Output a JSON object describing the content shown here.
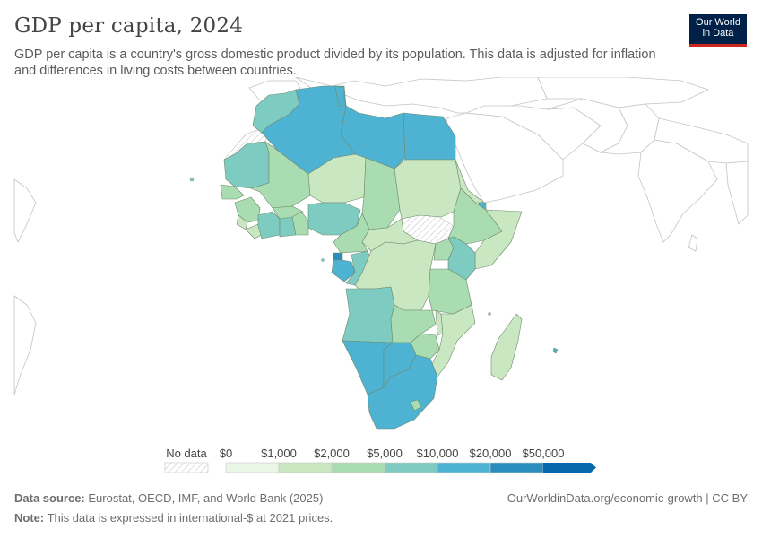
{
  "header": {
    "title": "GDP per capita, 2024",
    "subtitle": "GDP per capita is a country's gross domestic product divided by its population. This data is adjusted for inflation and differences in living costs between countries."
  },
  "logo": {
    "line1": "Our World",
    "line2": "in Data",
    "bg": "#002147",
    "accent": "#ce261e"
  },
  "legend": {
    "no_data_label": "No data",
    "bins": [
      {
        "label": "$0",
        "color": "#eaf6e6"
      },
      {
        "label": "$1,000",
        "color": "#c9e8c1"
      },
      {
        "label": "$2,000",
        "color": "#a9dcb0"
      },
      {
        "label": "$5,000",
        "color": "#7ecbc2"
      },
      {
        "label": "$10,000",
        "color": "#4eb3d3"
      },
      {
        "label": "$20,000",
        "color": "#2b8cbe"
      },
      {
        "label": "$50,000",
        "color": "#0868ac"
      }
    ]
  },
  "footer": {
    "source_label": "Data source:",
    "source_text": "Eurostat, OECD, IMF, and World Bank (2025)",
    "note_label": "Note:",
    "note_text": "This data is expressed in international-$ at 2021 prices.",
    "url": "OurWorldinData.org/economic-growth | CC BY"
  },
  "map_data": {
    "region": "Africa",
    "countries": [
      {
        "name": "Morocco",
        "bin": 3
      },
      {
        "name": "Western Sahara",
        "bin": -1
      },
      {
        "name": "Algeria",
        "bin": 4
      },
      {
        "name": "Tunisia",
        "bin": 4
      },
      {
        "name": "Libya",
        "bin": 4
      },
      {
        "name": "Egypt",
        "bin": 4
      },
      {
        "name": "Mauritania",
        "bin": 3
      },
      {
        "name": "Mali",
        "bin": 2
      },
      {
        "name": "Niger",
        "bin": 1
      },
      {
        "name": "Chad",
        "bin": 2
      },
      {
        "name": "Sudan",
        "bin": 1
      },
      {
        "name": "South Sudan",
        "bin": -1
      },
      {
        "name": "Eritrea",
        "bin": 1
      },
      {
        "name": "Djibouti",
        "bin": 4
      },
      {
        "name": "Ethiopia",
        "bin": 2
      },
      {
        "name": "Somalia",
        "bin": 1
      },
      {
        "name": "Senegal",
        "bin": 2
      },
      {
        "name": "Guinea",
        "bin": 2
      },
      {
        "name": "Sierra Leone",
        "bin": 1
      },
      {
        "name": "Liberia",
        "bin": 1
      },
      {
        "name": "Cote d'Ivoire",
        "bin": 3
      },
      {
        "name": "Burkina Faso",
        "bin": 2
      },
      {
        "name": "Ghana",
        "bin": 3
      },
      {
        "name": "Togo",
        "bin": 2
      },
      {
        "name": "Benin",
        "bin": 2
      },
      {
        "name": "Nigeria",
        "bin": 3
      },
      {
        "name": "Cameroon",
        "bin": 2
      },
      {
        "name": "Central African Republic",
        "bin": 1
      },
      {
        "name": "Equatorial Guinea",
        "bin": 4
      },
      {
        "name": "Gabon",
        "bin": 4
      },
      {
        "name": "Congo",
        "bin": 3
      },
      {
        "name": "Democratic Republic of Congo",
        "bin": 1
      },
      {
        "name": "Uganda",
        "bin": 2
      },
      {
        "name": "Kenya",
        "bin": 3
      },
      {
        "name": "Tanzania",
        "bin": 2
      },
      {
        "name": "Angola",
        "bin": 3
      },
      {
        "name": "Zambia",
        "bin": 2
      },
      {
        "name": "Malawi",
        "bin": 1
      },
      {
        "name": "Mozambique",
        "bin": 1
      },
      {
        "name": "Zimbabwe",
        "bin": 2
      },
      {
        "name": "Namibia",
        "bin": 4
      },
      {
        "name": "Botswana",
        "bin": 4
      },
      {
        "name": "South Africa",
        "bin": 4
      },
      {
        "name": "Madagascar",
        "bin": 1
      },
      {
        "name": "Mauritius",
        "bin": 4
      }
    ]
  }
}
